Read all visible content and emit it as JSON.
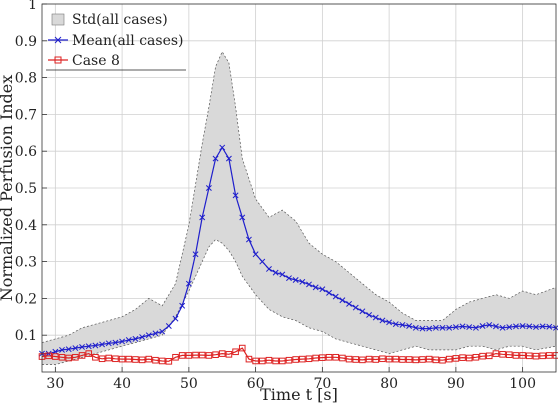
{
  "chart_data": {
    "type": "line",
    "xlabel": "Time t [s]",
    "ylabel": "Normalized Perfusion Index",
    "xlim": [
      28,
      105
    ],
    "ylim": [
      0,
      1
    ],
    "xticks": [
      30,
      40,
      50,
      60,
      70,
      80,
      90,
      100
    ],
    "yticks": [
      0.1,
      0.2,
      0.3,
      0.4,
      0.5,
      0.6,
      0.7,
      0.8,
      0.9,
      1
    ],
    "ytick_labels": [
      "0.1",
      "0.2",
      "0.3",
      "0.4",
      "0.5",
      "0.6",
      "0.7",
      "0.8",
      "0.9",
      "1"
    ],
    "grid": true,
    "legend_position": "top-left",
    "legend": [
      "Std(all cases)",
      "Mean(all cases)",
      "Case 8"
    ],
    "colors": {
      "std_fill": "#d9d9d9",
      "std_edge": "#555555",
      "mean": "#1f1fcc",
      "case": "#dd2222"
    },
    "std_band": {
      "name": "Std(all cases)",
      "x": [
        28,
        30,
        32,
        34,
        36,
        38,
        40,
        42,
        44,
        46,
        48,
        50,
        52,
        53,
        54,
        55,
        56,
        57,
        58,
        60,
        62,
        64,
        66,
        68,
        70,
        72,
        74,
        76,
        78,
        80,
        82,
        84,
        86,
        88,
        90,
        92,
        94,
        96,
        98,
        100,
        102,
        105
      ],
      "upper": [
        0.08,
        0.09,
        0.1,
        0.12,
        0.13,
        0.14,
        0.15,
        0.17,
        0.2,
        0.18,
        0.24,
        0.4,
        0.62,
        0.72,
        0.83,
        0.87,
        0.84,
        0.72,
        0.58,
        0.47,
        0.42,
        0.44,
        0.41,
        0.35,
        0.32,
        0.3,
        0.27,
        0.24,
        0.21,
        0.19,
        0.16,
        0.14,
        0.14,
        0.14,
        0.17,
        0.19,
        0.2,
        0.21,
        0.2,
        0.22,
        0.21,
        0.23
      ],
      "lower": [
        0.02,
        0.02,
        0.03,
        0.04,
        0.05,
        0.06,
        0.07,
        0.08,
        0.09,
        0.1,
        0.15,
        0.22,
        0.3,
        0.34,
        0.36,
        0.35,
        0.33,
        0.3,
        0.26,
        0.21,
        0.17,
        0.15,
        0.14,
        0.12,
        0.11,
        0.09,
        0.08,
        0.07,
        0.06,
        0.05,
        0.06,
        0.07,
        0.06,
        0.06,
        0.06,
        0.07,
        0.07,
        0.06,
        0.07,
        0.07,
        0.06,
        0.07
      ]
    },
    "series": [
      {
        "name": "Mean(all cases)",
        "marker": "x",
        "x": [
          28,
          29,
          30,
          31,
          32,
          33,
          34,
          35,
          36,
          37,
          38,
          39,
          40,
          41,
          42,
          43,
          44,
          45,
          46,
          47,
          48,
          49,
          50,
          51,
          52,
          53,
          54,
          55,
          56,
          57,
          58,
          59,
          60,
          61,
          62,
          63,
          64,
          65,
          66,
          67,
          68,
          69,
          70,
          71,
          72,
          73,
          74,
          75,
          76,
          77,
          78,
          79,
          80,
          81,
          82,
          83,
          84,
          85,
          86,
          87,
          88,
          89,
          90,
          91,
          92,
          93,
          94,
          95,
          96,
          97,
          98,
          99,
          100,
          101,
          102,
          103,
          104,
          105
        ],
        "values": [
          0.05,
          0.05,
          0.055,
          0.06,
          0.062,
          0.065,
          0.068,
          0.07,
          0.072,
          0.075,
          0.078,
          0.08,
          0.083,
          0.087,
          0.09,
          0.095,
          0.1,
          0.105,
          0.11,
          0.125,
          0.145,
          0.18,
          0.24,
          0.32,
          0.42,
          0.5,
          0.58,
          0.61,
          0.58,
          0.48,
          0.42,
          0.36,
          0.32,
          0.3,
          0.28,
          0.27,
          0.265,
          0.255,
          0.25,
          0.245,
          0.238,
          0.23,
          0.225,
          0.215,
          0.205,
          0.195,
          0.185,
          0.175,
          0.165,
          0.155,
          0.148,
          0.14,
          0.135,
          0.13,
          0.128,
          0.125,
          0.12,
          0.118,
          0.118,
          0.12,
          0.12,
          0.12,
          0.122,
          0.124,
          0.122,
          0.12,
          0.125,
          0.128,
          0.124,
          0.12,
          0.122,
          0.124,
          0.125,
          0.124,
          0.122,
          0.124,
          0.123,
          0.12
        ]
      },
      {
        "name": "Case 8",
        "marker": "square",
        "x": [
          28,
          29,
          30,
          31,
          32,
          33,
          34,
          35,
          36,
          37,
          38,
          39,
          40,
          41,
          42,
          43,
          44,
          45,
          46,
          47,
          48,
          49,
          50,
          51,
          52,
          53,
          54,
          55,
          56,
          57,
          58,
          59,
          60,
          61,
          62,
          63,
          64,
          65,
          66,
          67,
          68,
          69,
          70,
          71,
          72,
          73,
          74,
          75,
          76,
          77,
          78,
          79,
          80,
          81,
          82,
          83,
          84,
          85,
          86,
          87,
          88,
          89,
          90,
          91,
          92,
          93,
          94,
          95,
          96,
          97,
          98,
          99,
          100,
          101,
          102,
          103,
          104,
          105
        ],
        "values": [
          0.042,
          0.044,
          0.042,
          0.04,
          0.038,
          0.04,
          0.045,
          0.05,
          0.04,
          0.036,
          0.038,
          0.036,
          0.035,
          0.035,
          0.034,
          0.033,
          0.035,
          0.032,
          0.03,
          0.029,
          0.04,
          0.045,
          0.045,
          0.046,
          0.046,
          0.045,
          0.047,
          0.05,
          0.048,
          0.055,
          0.065,
          0.035,
          0.03,
          0.03,
          0.032,
          0.03,
          0.03,
          0.032,
          0.034,
          0.035,
          0.036,
          0.038,
          0.039,
          0.04,
          0.04,
          0.038,
          0.035,
          0.034,
          0.033,
          0.035,
          0.034,
          0.036,
          0.035,
          0.035,
          0.034,
          0.034,
          0.033,
          0.034,
          0.035,
          0.033,
          0.032,
          0.035,
          0.037,
          0.039,
          0.038,
          0.04,
          0.043,
          0.044,
          0.05,
          0.048,
          0.047,
          0.045,
          0.045,
          0.044,
          0.043,
          0.044,
          0.045,
          0.045
        ]
      }
    ]
  }
}
